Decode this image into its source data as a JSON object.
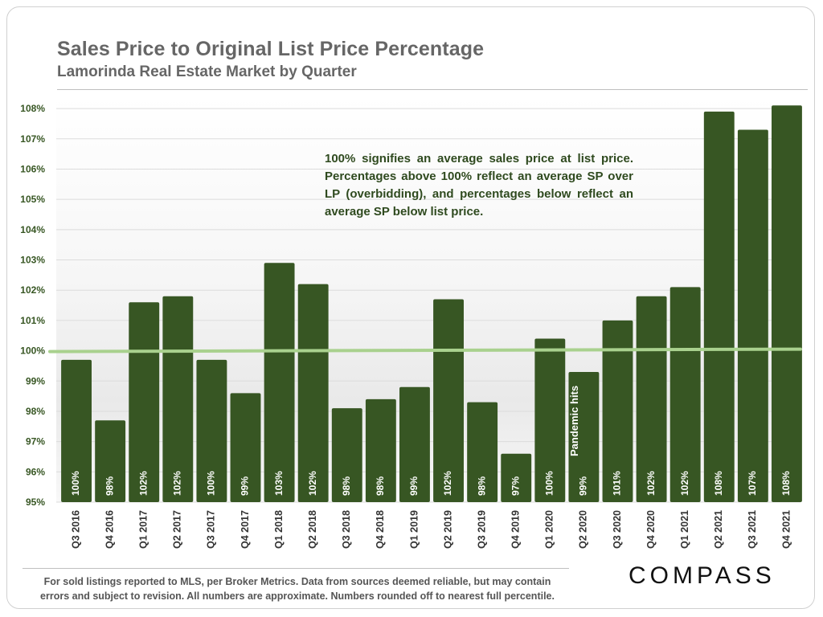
{
  "header": {
    "title": "Sales Price to Original List Price Percentage",
    "subtitle": "Lamorinda Real Estate Market by Quarter"
  },
  "annotation": "100% signifies an average sales price at list price. Percentages above 100% reflect an average SP over LP (overbidding), and percentages below reflect an average SP below list price.",
  "footer": {
    "footnote_line1": "For sold listings reported to MLS, per Broker Metrics. Data from sources deemed reliable, but may contain",
    "footnote_line2": "errors and subject to revision. All numbers are approximate. Numbers rounded off to nearest full percentile.",
    "logo": "COMPASS"
  },
  "colors": {
    "bar": "#375623",
    "reference_line": "#a9d18e",
    "tick_label": "#375623",
    "bar_label": "#ffffff"
  },
  "chart_data": {
    "type": "bar",
    "title": "Sales Price to Original List Price Percentage",
    "subtitle": "Lamorinda Real Estate Market by Quarter",
    "xlabel": "",
    "ylabel": "",
    "ylim": [
      95,
      108.4
    ],
    "yticks": [
      95,
      96,
      97,
      98,
      99,
      100,
      101,
      102,
      103,
      104,
      105,
      106,
      107,
      108
    ],
    "ytick_labels": [
      "95%",
      "96%",
      "97%",
      "98%",
      "99%",
      "100%",
      "101%",
      "102%",
      "103%",
      "104%",
      "105%",
      "106%",
      "107%",
      "108%"
    ],
    "grid": true,
    "categories": [
      "Q3 2016",
      "Q4 2016",
      "Q1 2017",
      "Q2 2017",
      "Q3 2017",
      "Q4 2017",
      "Q1 2018",
      "Q2 2018",
      "Q3 2018",
      "Q4 2018",
      "Q1 2019",
      "Q2 2019",
      "Q3 2019",
      "Q4 2019",
      "Q1 2020",
      "Q2 2020",
      "Q3 2020",
      "Q4 2020",
      "Q1 2021",
      "Q2 2021",
      "Q3 2021",
      "Q4 2021"
    ],
    "values": [
      99.7,
      97.7,
      101.6,
      101.8,
      99.7,
      98.6,
      102.9,
      102.2,
      98.1,
      98.4,
      98.8,
      101.7,
      98.3,
      96.6,
      100.4,
      99.3,
      101.0,
      101.8,
      102.1,
      107.9,
      107.3,
      108.1
    ],
    "data_labels": [
      "100%",
      "98%",
      "102%",
      "102%",
      "100%",
      "99%",
      "103%",
      "102%",
      "98%",
      "98%",
      "99%",
      "102%",
      "98%",
      "97%",
      "100%",
      "99%",
      "101%",
      "102%",
      "102%",
      "108%",
      "107%",
      "108%"
    ],
    "reference_line": {
      "value": 100,
      "label": "100%"
    },
    "annotations": [
      {
        "text": "Pandemic hits",
        "category": "Q2 2020",
        "value": 99.7
      }
    ]
  }
}
